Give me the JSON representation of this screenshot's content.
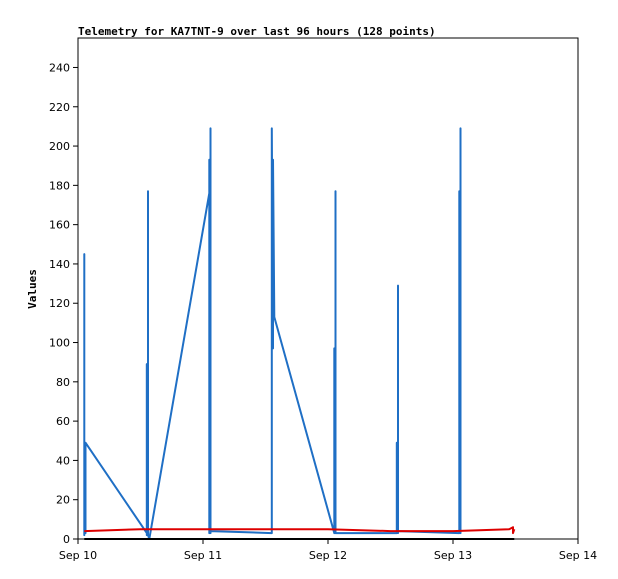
{
  "chart_data": {
    "type": "line",
    "title": "Telemetry for KA7TNT-9 over last 96 hours (128 points)",
    "xlabel": "",
    "ylabel": "Values",
    "x_ticks": [
      "Sep 10",
      "Sep 11",
      "Sep 12",
      "Sep 13",
      "Sep 14"
    ],
    "xlim_days": [
      10,
      14
    ],
    "ylim": [
      0,
      255
    ],
    "y_ticks": [
      0,
      20,
      40,
      60,
      80,
      100,
      120,
      140,
      160,
      180,
      200,
      220,
      240
    ],
    "grid": false,
    "legend": "none",
    "series": [
      {
        "color": "#1f6fc5",
        "points": [
          [
            10.05,
            3
          ],
          [
            10.05,
            145
          ],
          [
            10.05,
            2
          ],
          [
            10.06,
            48
          ],
          [
            10.06,
            3
          ],
          [
            10.06,
            49
          ],
          [
            10.55,
            3
          ],
          [
            10.55,
            2
          ],
          [
            10.55,
            89
          ],
          [
            10.56,
            3
          ],
          [
            10.56,
            177
          ],
          [
            10.56,
            2
          ],
          [
            10.57,
            0
          ],
          [
            11.05,
            176
          ],
          [
            11.05,
            3
          ],
          [
            11.05,
            193
          ],
          [
            11.06,
            3
          ],
          [
            11.06,
            209
          ],
          [
            11.06,
            4
          ],
          [
            11.55,
            3
          ],
          [
            11.55,
            161
          ],
          [
            11.55,
            209
          ],
          [
            11.56,
            97
          ],
          [
            11.56,
            193
          ],
          [
            11.57,
            113
          ],
          [
            12.05,
            3
          ],
          [
            12.05,
            97
          ],
          [
            12.06,
            4
          ],
          [
            12.06,
            177
          ],
          [
            12.06,
            3
          ],
          [
            12.55,
            3
          ],
          [
            12.55,
            49
          ],
          [
            12.56,
            3
          ],
          [
            12.56,
            129
          ],
          [
            12.56,
            4
          ],
          [
            13.05,
            3
          ],
          [
            13.05,
            177
          ],
          [
            13.06,
            3
          ],
          [
            13.06,
            209
          ],
          [
            13.06,
            4
          ]
        ]
      },
      {
        "color": "#dd0000",
        "points": [
          [
            10.05,
            4
          ],
          [
            10.5,
            5
          ],
          [
            11.0,
            5
          ],
          [
            11.5,
            5
          ],
          [
            12.0,
            5
          ],
          [
            12.5,
            4
          ],
          [
            13.0,
            4
          ],
          [
            13.45,
            5
          ],
          [
            13.48,
            6
          ],
          [
            13.48,
            3
          ],
          [
            13.49,
            5
          ]
        ]
      },
      {
        "color": "#000000",
        "points": [
          [
            10.05,
            0
          ],
          [
            13.49,
            0
          ]
        ]
      }
    ]
  }
}
